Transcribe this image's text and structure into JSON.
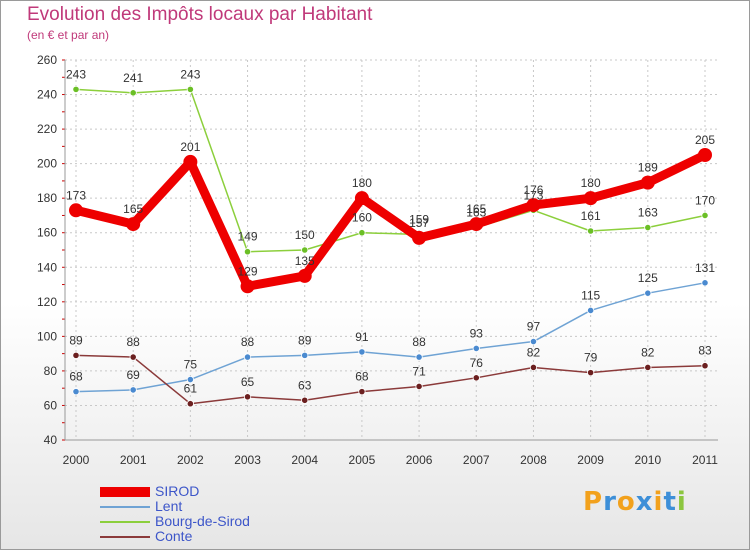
{
  "chart_data": {
    "type": "line",
    "title": "Evolution des Impôts locaux par Habitant",
    "subtitle": "(en € et par an)",
    "x": [
      "2000",
      "2001",
      "2002",
      "2003",
      "2004",
      "2005",
      "2006",
      "2007",
      "2008",
      "2009",
      "2010",
      "2011"
    ],
    "yticks": [
      "40",
      "60",
      "80",
      "100",
      "120",
      "140",
      "160",
      "180",
      "200",
      "220",
      "240",
      "260"
    ],
    "ylim": [
      40,
      260
    ],
    "grid": true,
    "legend_position": "bottom-left",
    "series": [
      {
        "name": "Bourg-de-Sirod",
        "color": "#8ccf3c",
        "marker": "#6bbf26",
        "values": [
          243,
          241,
          243,
          149,
          150,
          160,
          159,
          163,
          173,
          161,
          163,
          170
        ],
        "labels": [
          "243",
          "241",
          "243",
          "149",
          "150",
          "160",
          "159",
          "163",
          "173",
          "161",
          "163",
          "170"
        ]
      },
      {
        "name": "Lent",
        "color": "#6fa3d4",
        "marker": "#4a8ad0",
        "values": [
          68,
          69,
          75,
          88,
          89,
          91,
          88,
          93,
          97,
          115,
          125,
          131
        ],
        "labels": [
          "68",
          "69",
          "75",
          "88",
          "89",
          "91",
          "88",
          "93",
          "97",
          "115",
          "125",
          "131"
        ]
      },
      {
        "name": "Conte",
        "color": "#8b3a3a",
        "marker": "#6b1f1f",
        "values": [
          89,
          88,
          61,
          65,
          63,
          68,
          71,
          76,
          82,
          79,
          82,
          83
        ],
        "labels": [
          "89",
          "88",
          "61",
          "65",
          "63",
          "68",
          "71",
          "76",
          "82",
          "79",
          "82",
          "83"
        ]
      },
      {
        "name": "SIROD",
        "color": "#ee0000",
        "marker": "#ee0000",
        "values": [
          173,
          165,
          201,
          129,
          135,
          180,
          157,
          165,
          176,
          180,
          189,
          205
        ],
        "labels": [
          "173",
          "165",
          "201",
          "129",
          "135",
          "180",
          "157",
          "165",
          "176",
          "180",
          "189",
          "205"
        ]
      }
    ],
    "legend": [
      "SIROD",
      "Lent",
      "Bourg-de-Sirod",
      "Conte"
    ]
  },
  "logo": {
    "letters": [
      "P",
      "r",
      "o",
      "x",
      "i",
      "t",
      "i"
    ],
    "colors": [
      "#f2a11c",
      "#3d8fd8",
      "#f2a11c",
      "#3d8fd8",
      "#f2a11c",
      "#3d8fd8",
      "#8cc63f"
    ]
  }
}
